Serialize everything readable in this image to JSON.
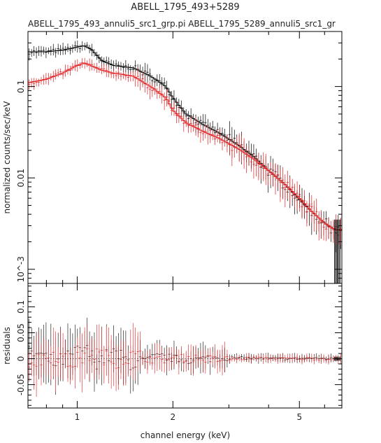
{
  "chart_data": [
    {
      "type": "line",
      "title": "ABELL_1795_493+5289",
      "subtitle": "ABELL_1795_493_annuli5_src1_grp.pi  ABELL_1795_5289_annuli5_src1_gr",
      "xlabel": "channel energy (keV)",
      "ylabel": "normalized counts/sec/keV",
      "xscale": "log",
      "yscale": "log",
      "xlim": [
        0.7,
        6.8
      ],
      "ylim": [
        0.0007,
        0.4
      ],
      "yticks": [
        {
          "value": 0.1,
          "label": "0.1"
        },
        {
          "value": 0.01,
          "label": "0.01"
        },
        {
          "value": 0.001,
          "label": "10^-3"
        }
      ],
      "xticks": [
        {
          "value": 1,
          "label": "1"
        },
        {
          "value": 2,
          "label": "2"
        },
        {
          "value": 5,
          "label": "5"
        }
      ],
      "series": [
        {
          "color": "#000000",
          "style": "model-step-with-error-bars",
          "x": [
            0.7,
            0.8,
            0.9,
            1.0,
            1.05,
            1.1,
            1.2,
            1.3,
            1.5,
            1.7,
            1.9,
            2.0,
            2.2,
            2.5,
            2.8,
            3.2,
            3.6,
            4.0,
            4.5,
            5.0,
            5.5,
            6.0,
            6.5
          ],
          "y": [
            0.24,
            0.24,
            0.25,
            0.27,
            0.28,
            0.26,
            0.19,
            0.17,
            0.16,
            0.13,
            0.1,
            0.075,
            0.05,
            0.038,
            0.031,
            0.023,
            0.017,
            0.012,
            0.0085,
            0.0058,
            0.0042,
            0.0032,
            0.0027
          ]
        },
        {
          "color": "#e41a1c",
          "style": "model-step-with-error-bars",
          "x": [
            0.7,
            0.8,
            0.9,
            1.0,
            1.05,
            1.1,
            1.2,
            1.3,
            1.5,
            1.7,
            1.9,
            2.0,
            2.2,
            2.5,
            2.8,
            3.2,
            3.6,
            4.0,
            4.5,
            5.0,
            5.5,
            6.0,
            6.5
          ],
          "y": [
            0.11,
            0.12,
            0.14,
            0.17,
            0.18,
            0.17,
            0.15,
            0.14,
            0.13,
            0.1,
            0.075,
            0.055,
            0.04,
            0.032,
            0.027,
            0.021,
            0.016,
            0.012,
            0.0085,
            0.006,
            0.0042,
            0.0032,
            0.0027
          ]
        }
      ]
    },
    {
      "type": "scatter",
      "ylabel": "residuals",
      "xscale": "log",
      "xlim": [
        0.7,
        6.8
      ],
      "ylim": [
        -0.095,
        0.145
      ],
      "yticks": [
        {
          "value": 0.1,
          "label": "0.1"
        },
        {
          "value": 0.05,
          "label": "0.05"
        },
        {
          "value": 0,
          "label": "0"
        },
        {
          "value": -0.05,
          "label": "-0.05"
        }
      ],
      "xticks": [
        {
          "value": 1,
          "label": "1"
        },
        {
          "value": 2,
          "label": "2"
        },
        {
          "value": 5,
          "label": "5"
        }
      ],
      "series": [
        {
          "color": "#000000",
          "x": [
            0.75,
            0.85,
            0.95,
            1.05,
            1.15,
            1.3,
            1.5,
            1.8,
            2.2,
            2.8,
            3.6,
            4.5,
            5.5,
            6.5
          ],
          "y": [
            0.01,
            -0.01,
            0.005,
            0.02,
            -0.005,
            0.01,
            -0.01,
            0.005,
            -0.003,
            0.002,
            0.001,
            0.0,
            0.001,
            0.0
          ]
        },
        {
          "color": "#e41a1c",
          "x": [
            0.75,
            0.85,
            0.95,
            1.05,
            1.15,
            1.3,
            1.5,
            1.8,
            2.2,
            2.8,
            3.6,
            4.5,
            5.5,
            6.5
          ],
          "y": [
            -0.005,
            0.01,
            -0.01,
            0.005,
            0.01,
            -0.005,
            0.005,
            -0.003,
            0.002,
            -0.002,
            0.001,
            0.0,
            0.0,
            0.0
          ]
        }
      ]
    }
  ]
}
